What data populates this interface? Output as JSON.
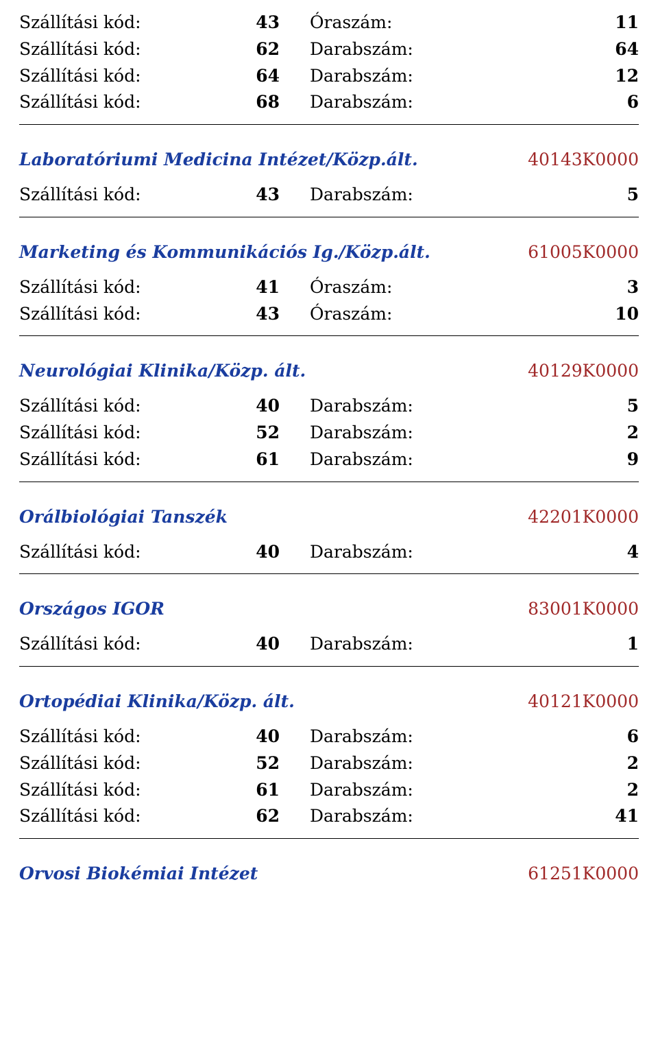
{
  "colors": {
    "title": "#1a3d9f",
    "code": "#a02828",
    "text": "#000000",
    "rule": "#000000",
    "background": "#ffffff"
  },
  "labels": {
    "szkod": "Szállítási kód:",
    "oraszam": "Óraszám:",
    "darabszam": "Darabszám:"
  },
  "block0": {
    "rows": [
      {
        "code": "43",
        "type": "Óraszám:",
        "val": "11"
      },
      {
        "code": "62",
        "type": "Darabszám:",
        "val": "64"
      },
      {
        "code": "64",
        "type": "Darabszám:",
        "val": "12"
      },
      {
        "code": "68",
        "type": "Darabszám:",
        "val": "6"
      }
    ]
  },
  "sections": [
    {
      "title": "Laboratóriumi Medicina Intézet/Közp.ált.",
      "code": "40143K0000",
      "rows": [
        {
          "code": "43",
          "type": "Darabszám:",
          "val": "5"
        }
      ]
    },
    {
      "title": "Marketing és Kommunikációs Ig./Közp.ált.",
      "code": "61005K0000",
      "rows": [
        {
          "code": "41",
          "type": "Óraszám:",
          "val": "3"
        },
        {
          "code": "43",
          "type": "Óraszám:",
          "val": "10"
        }
      ]
    },
    {
      "title": "Neurológiai Klinika/Közp. ált.",
      "code": "40129K0000",
      "rows": [
        {
          "code": "40",
          "type": "Darabszám:",
          "val": "5"
        },
        {
          "code": "52",
          "type": "Darabszám:",
          "val": "2"
        },
        {
          "code": "61",
          "type": "Darabszám:",
          "val": "9"
        }
      ]
    },
    {
      "title": "Orálbiológiai Tanszék",
      "code": "42201K0000",
      "rows": [
        {
          "code": "40",
          "type": "Darabszám:",
          "val": "4"
        }
      ]
    },
    {
      "title": "Országos IGOR",
      "code": "83001K0000",
      "rows": [
        {
          "code": "40",
          "type": "Darabszám:",
          "val": "1"
        }
      ]
    },
    {
      "title": "Ortopédiai Klinika/Közp. ált.",
      "code": "40121K0000",
      "rows": [
        {
          "code": "40",
          "type": "Darabszám:",
          "val": "6"
        },
        {
          "code": "52",
          "type": "Darabszám:",
          "val": "2"
        },
        {
          "code": "61",
          "type": "Darabszám:",
          "val": "2"
        },
        {
          "code": "62",
          "type": "Darabszám:",
          "val": "41"
        }
      ]
    }
  ],
  "trailing": {
    "title": "Orvosi Biokémiai Intézet",
    "code": "61251K0000"
  }
}
